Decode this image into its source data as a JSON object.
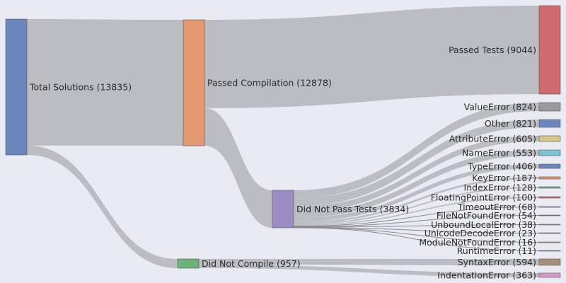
{
  "chart_data": {
    "type": "sankey",
    "title": "",
    "nodes": [
      {
        "id": "total",
        "label": "Total Solutions (13835)",
        "value": 13835,
        "color": "#6a86bd"
      },
      {
        "id": "passcomp",
        "label": "Passed Compilation (12878)",
        "value": 12878,
        "color": "#e3986f"
      },
      {
        "id": "notcomp",
        "label": "Did Not Compile (957)",
        "value": 957,
        "color": "#6fb37c"
      },
      {
        "id": "passed",
        "label": "Passed Tests (9044)",
        "value": 9044,
        "color": "#cf6b6f"
      },
      {
        "id": "notpass",
        "label": "Did Not Pass Tests (3834)",
        "value": 3834,
        "color": "#9b8cc6"
      },
      {
        "id": "valueerror",
        "label": "ValueError (824)",
        "value": 824,
        "color": "#9b9b9b"
      },
      {
        "id": "other",
        "label": "Other (821)",
        "value": 821,
        "color": "#6a86bd"
      },
      {
        "id": "attributeerror",
        "label": "AttributeError (605)",
        "value": 605,
        "color": "#d8c68a"
      },
      {
        "id": "nameerror",
        "label": "NameError (553)",
        "value": 553,
        "color": "#7fc2d4"
      },
      {
        "id": "typeerror",
        "label": "TypeError (406)",
        "value": 406,
        "color": "#6a86bd"
      },
      {
        "id": "keyerror",
        "label": "KeyError (187)",
        "value": 187,
        "color": "#e3986f"
      },
      {
        "id": "indexerror",
        "label": "IndexError (128)",
        "value": 128,
        "color": "#6fb37c"
      },
      {
        "id": "floatingpointerror",
        "label": "FloatingPointError (100)",
        "value": 100,
        "color": "#cf6b6f"
      },
      {
        "id": "timeouterror",
        "label": "TimeoutError (68)",
        "value": 68,
        "color": "#9b8cc6"
      },
      {
        "id": "filenotfounderror",
        "label": "FileNotFoundError (54)",
        "value": 54,
        "color": "#a88f78"
      },
      {
        "id": "unboundlocalerror",
        "label": "UnboundLocalError (38)",
        "value": 38,
        "color": "#d89ac8"
      },
      {
        "id": "unicodedecodeerror",
        "label": "UnicodeDecodeError (23)",
        "value": 23,
        "color": "#9b9b9b"
      },
      {
        "id": "modulenotfounderror",
        "label": "ModuleNotFoundError (16)",
        "value": 16,
        "color": "#d8c68a"
      },
      {
        "id": "runtimeerror",
        "label": "RuntimeError (11)",
        "value": 11,
        "color": "#7fc2d4"
      },
      {
        "id": "syntaxerror",
        "label": "SyntaxError (594)",
        "value": 594,
        "color": "#a88f78"
      },
      {
        "id": "indentationerror",
        "label": "IndentationError (363)",
        "value": 363,
        "color": "#d89ac8"
      }
    ],
    "links": [
      {
        "source": "total",
        "target": "passcomp",
        "value": 12878
      },
      {
        "source": "total",
        "target": "notcomp",
        "value": 957
      },
      {
        "source": "passcomp",
        "target": "passed",
        "value": 9044
      },
      {
        "source": "passcomp",
        "target": "notpass",
        "value": 3834
      },
      {
        "source": "notpass",
        "target": "valueerror",
        "value": 824
      },
      {
        "source": "notpass",
        "target": "other",
        "value": 821
      },
      {
        "source": "notpass",
        "target": "attributeerror",
        "value": 605
      },
      {
        "source": "notpass",
        "target": "nameerror",
        "value": 553
      },
      {
        "source": "notpass",
        "target": "typeerror",
        "value": 406
      },
      {
        "source": "notpass",
        "target": "keyerror",
        "value": 187
      },
      {
        "source": "notpass",
        "target": "indexerror",
        "value": 128
      },
      {
        "source": "notpass",
        "target": "floatingpointerror",
        "value": 100
      },
      {
        "source": "notpass",
        "target": "timeouterror",
        "value": 68
      },
      {
        "source": "notpass",
        "target": "filenotfounderror",
        "value": 54
      },
      {
        "source": "notpass",
        "target": "unboundlocalerror",
        "value": 38
      },
      {
        "source": "notpass",
        "target": "unicodedecodeerror",
        "value": 23
      },
      {
        "source": "notpass",
        "target": "modulenotfounderror",
        "value": 16
      },
      {
        "source": "notpass",
        "target": "runtimeerror",
        "value": 11
      },
      {
        "source": "notcomp",
        "target": "syntaxerror",
        "value": 594
      },
      {
        "source": "notcomp",
        "target": "indentationerror",
        "value": 363
      }
    ],
    "link_color": "#b9babf",
    "background": "#eaeaf2"
  }
}
